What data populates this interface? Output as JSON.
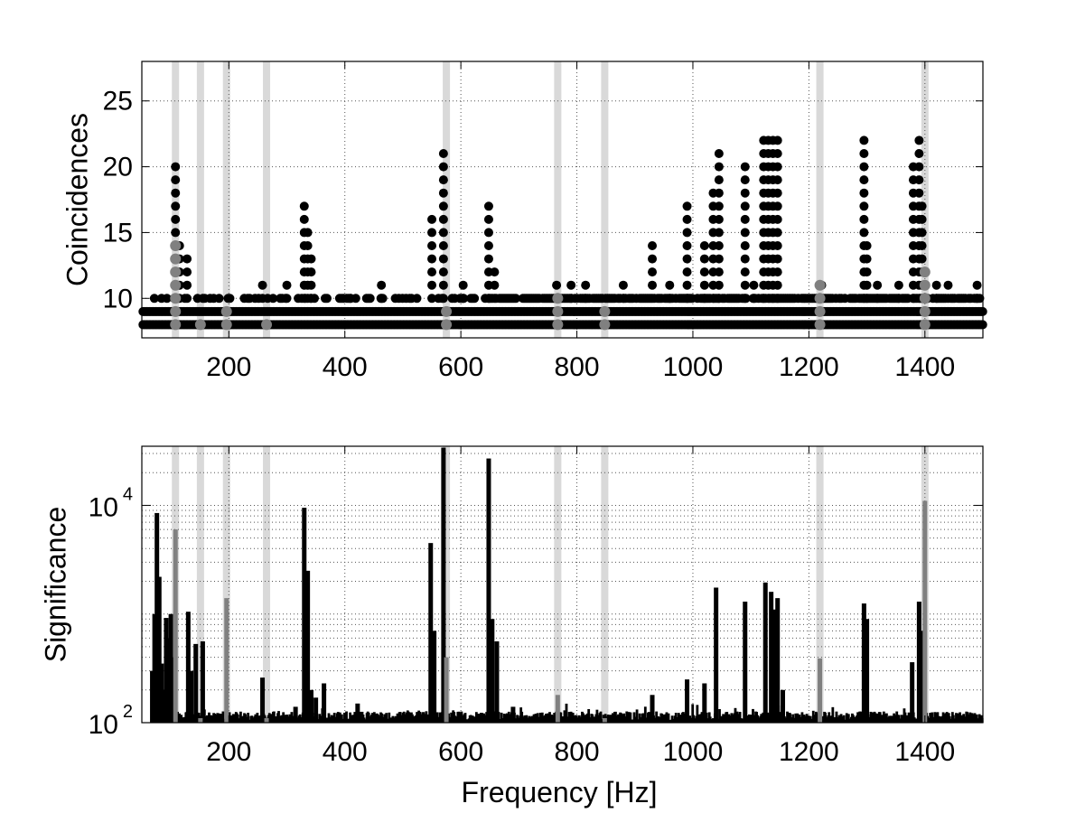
{
  "colors": {
    "data": "#000000",
    "highlight_marker": "#808080",
    "highlight_band": "#d9d9d9",
    "background": "#ffffff"
  },
  "chart_data": [
    {
      "type": "scatter",
      "xlabel": "",
      "ylabel": "Coincidences",
      "xlim": [
        50,
        1500
      ],
      "ylim": [
        7,
        28
      ],
      "xticks": [
        200,
        400,
        600,
        800,
        1000,
        1200,
        1400
      ],
      "yticks": [
        10,
        15,
        20,
        25
      ],
      "grid": true,
      "highlight_bands_hz": [
        108,
        151,
        196,
        265,
        575,
        767,
        848,
        1219,
        1400
      ],
      "peak_columns": [
        {
          "x": 108,
          "max": 20
        },
        {
          "x": 115,
          "max": 14
        },
        {
          "x": 128,
          "max": 13
        },
        {
          "x": 193,
          "max": 9
        },
        {
          "x": 258,
          "max": 11
        },
        {
          "x": 300,
          "max": 11
        },
        {
          "x": 330,
          "max": 17
        },
        {
          "x": 336,
          "max": 15
        },
        {
          "x": 342,
          "max": 13
        },
        {
          "x": 410,
          "max": 10
        },
        {
          "x": 463,
          "max": 11
        },
        {
          "x": 550,
          "max": 16
        },
        {
          "x": 570,
          "max": 21
        },
        {
          "x": 585,
          "max": 10
        },
        {
          "x": 604,
          "max": 11
        },
        {
          "x": 648,
          "max": 17
        },
        {
          "x": 658,
          "max": 12
        },
        {
          "x": 765,
          "max": 11
        },
        {
          "x": 790,
          "max": 11
        },
        {
          "x": 815,
          "max": 11
        },
        {
          "x": 880,
          "max": 11
        },
        {
          "x": 930,
          "max": 14
        },
        {
          "x": 960,
          "max": 11
        },
        {
          "x": 990,
          "max": 17
        },
        {
          "x": 1020,
          "max": 14
        },
        {
          "x": 1035,
          "max": 18
        },
        {
          "x": 1045,
          "max": 21
        },
        {
          "x": 1090,
          "max": 20
        },
        {
          "x": 1105,
          "max": 11
        },
        {
          "x": 1122,
          "max": 22
        },
        {
          "x": 1130,
          "max": 22
        },
        {
          "x": 1138,
          "max": 22
        },
        {
          "x": 1146,
          "max": 22
        },
        {
          "x": 1222,
          "max": 11
        },
        {
          "x": 1295,
          "max": 22
        },
        {
          "x": 1300,
          "max": 14
        },
        {
          "x": 1318,
          "max": 11
        },
        {
          "x": 1355,
          "max": 11
        },
        {
          "x": 1380,
          "max": 20
        },
        {
          "x": 1390,
          "max": 22
        },
        {
          "x": 1395,
          "max": 17
        },
        {
          "x": 1420,
          "max": 11
        },
        {
          "x": 1440,
          "max": 11
        },
        {
          "x": 1490,
          "max": 11
        }
      ],
      "highlight_points": [
        {
          "x": 108,
          "max": 14
        },
        {
          "x": 151,
          "max": 8
        },
        {
          "x": 196,
          "max": 9
        },
        {
          "x": 265,
          "max": 8
        },
        {
          "x": 575,
          "max": 9
        },
        {
          "x": 767,
          "max": 10
        },
        {
          "x": 848,
          "max": 9
        },
        {
          "x": 1219,
          "max": 11
        },
        {
          "x": 1400,
          "max": 12
        }
      ]
    },
    {
      "type": "bar",
      "xlabel": "Frequency [Hz]",
      "ylabel": "Significance",
      "xlim": [
        50,
        1500
      ],
      "ylim": [
        100,
        35000
      ],
      "yscale": "log",
      "xticks": [
        200,
        400,
        600,
        800,
        1000,
        1200,
        1400
      ],
      "yticks": [
        {
          "value": 100,
          "base": "10",
          "exp": "2"
        },
        {
          "value": 10000,
          "base": "10",
          "exp": "4"
        }
      ],
      "grid": true,
      "highlight_bands_hz": [
        108,
        151,
        196,
        265,
        575,
        767,
        848,
        1219,
        1400
      ],
      "peaks": [
        {
          "x": 68,
          "y": 300
        },
        {
          "x": 72,
          "y": 1000
        },
        {
          "x": 76,
          "y": 8500
        },
        {
          "x": 80,
          "y": 2200
        },
        {
          "x": 84,
          "y": 350
        },
        {
          "x": 88,
          "y": 200
        },
        {
          "x": 92,
          "y": 920
        },
        {
          "x": 96,
          "y": 600
        },
        {
          "x": 100,
          "y": 1000
        },
        {
          "x": 104,
          "y": 400
        },
        {
          "x": 130,
          "y": 1050
        },
        {
          "x": 135,
          "y": 300
        },
        {
          "x": 143,
          "y": 530
        },
        {
          "x": 155,
          "y": 560
        },
        {
          "x": 258,
          "y": 260
        },
        {
          "x": 315,
          "y": 140
        },
        {
          "x": 330,
          "y": 9500
        },
        {
          "x": 336,
          "y": 2500
        },
        {
          "x": 342,
          "y": 200
        },
        {
          "x": 350,
          "y": 170
        },
        {
          "x": 364,
          "y": 230
        },
        {
          "x": 422,
          "y": 150
        },
        {
          "x": 548,
          "y": 4500
        },
        {
          "x": 554,
          "y": 700
        },
        {
          "x": 570,
          "y": 34000
        },
        {
          "x": 648,
          "y": 27000
        },
        {
          "x": 654,
          "y": 900
        },
        {
          "x": 662,
          "y": 560
        },
        {
          "x": 690,
          "y": 140
        },
        {
          "x": 930,
          "y": 180
        },
        {
          "x": 990,
          "y": 250
        },
        {
          "x": 1020,
          "y": 230
        },
        {
          "x": 1040,
          "y": 1750
        },
        {
          "x": 1090,
          "y": 1300
        },
        {
          "x": 1125,
          "y": 1950
        },
        {
          "x": 1135,
          "y": 1600
        },
        {
          "x": 1140,
          "y": 1100
        },
        {
          "x": 1146,
          "y": 1400
        },
        {
          "x": 1155,
          "y": 200
        },
        {
          "x": 1295,
          "y": 1250
        },
        {
          "x": 1300,
          "y": 900
        },
        {
          "x": 1378,
          "y": 360
        },
        {
          "x": 1390,
          "y": 1300
        },
        {
          "x": 1394,
          "y": 700
        }
      ],
      "highlight_bars": [
        {
          "x": 108,
          "y": 6000
        },
        {
          "x": 151,
          "y": 110
        },
        {
          "x": 196,
          "y": 1400
        },
        {
          "x": 265,
          "y": 110
        },
        {
          "x": 575,
          "y": 400
        },
        {
          "x": 767,
          "y": 180
        },
        {
          "x": 848,
          "y": 110
        },
        {
          "x": 1219,
          "y": 390
        },
        {
          "x": 1400,
          "y": 11000
        }
      ]
    }
  ]
}
